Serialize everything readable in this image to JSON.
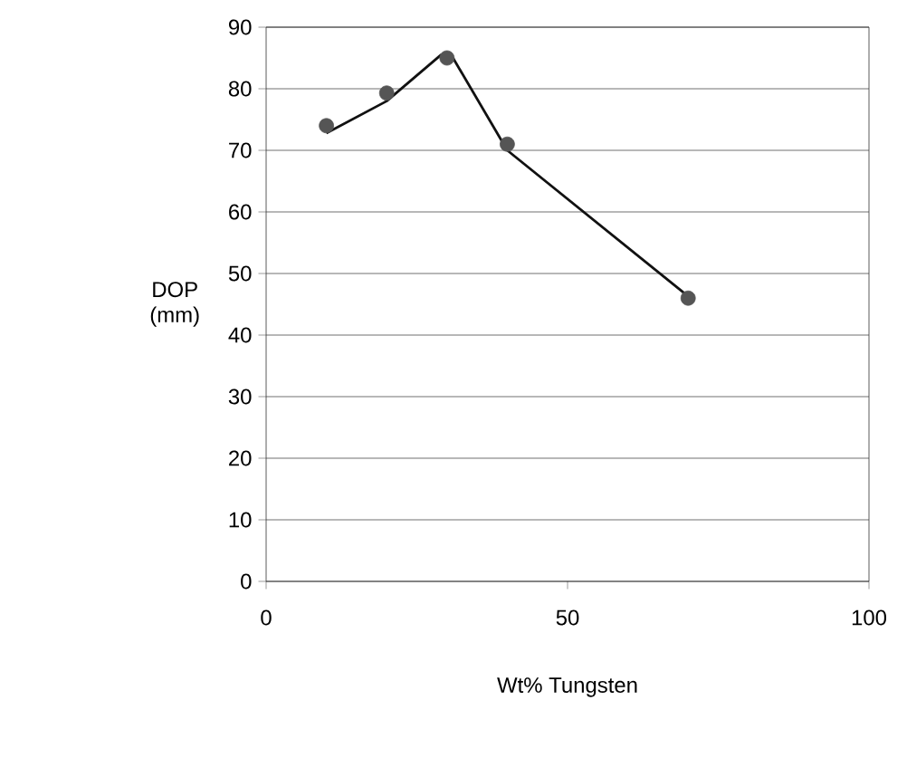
{
  "chart_data": {
    "type": "line",
    "xlabel": "Wt% Tungsten",
    "ylabel": "DOP (mm)",
    "xlim": [
      0,
      100
    ],
    "xticks": [
      0,
      50,
      100
    ],
    "ylim": [
      0,
      90
    ],
    "yticks": [
      0,
      10,
      20,
      30,
      40,
      50,
      60,
      70,
      80,
      90
    ],
    "grid": "y",
    "series": [
      {
        "type": "scatter",
        "color": "#555555",
        "marker": "circle",
        "x": [
          10,
          20,
          30,
          40,
          70
        ],
        "values": [
          74,
          79.3,
          85,
          71,
          46
        ]
      },
      {
        "color": "#111111",
        "marker": "none",
        "line_style": "solid",
        "x": [
          10,
          20,
          29,
          31,
          40,
          70
        ],
        "values": [
          72.8,
          78,
          85.5,
          85,
          70,
          46.3
        ]
      }
    ]
  }
}
